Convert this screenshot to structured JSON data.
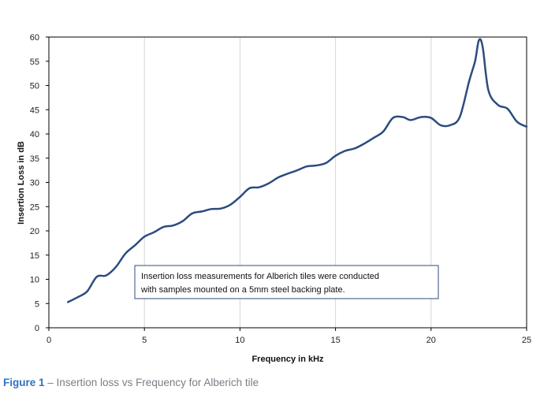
{
  "chart_data": {
    "type": "line",
    "xlabel": "Frequency in kHz",
    "ylabel": "Insertion Loss in dB",
    "xlim": [
      0,
      25
    ],
    "ylim": [
      0,
      60
    ],
    "xticks": [
      "0",
      "5",
      "10",
      "15",
      "20",
      "25"
    ],
    "yticks": [
      "0",
      "5",
      "10",
      "15",
      "20",
      "25",
      "30",
      "35",
      "40",
      "45",
      "50",
      "55",
      "60"
    ],
    "grid": "vertical",
    "line_color": "#2b4c7e",
    "annotation": {
      "line1": "Insertion loss measurements for Alberich tiles were conducted",
      "line2": "with samples mounted  on a 5mm  steel backing plate."
    },
    "series": [
      {
        "x": [
          1.0,
          1.5,
          2.0,
          2.5,
          3.0,
          3.5,
          4.0,
          4.5,
          5.0,
          5.5,
          6.0,
          6.5,
          7.0,
          7.5,
          8.0,
          8.5,
          9.0,
          9.5,
          10.0,
          10.5,
          11.0,
          11.5,
          12.0,
          12.5,
          13.0,
          13.5,
          14.0,
          14.5,
          15.0,
          15.5,
          16.0,
          16.5,
          17.0,
          17.5,
          18.0,
          18.5,
          18.8,
          19.0,
          19.5,
          20.0,
          20.5,
          21.0,
          21.5,
          22.0,
          22.3,
          22.5,
          22.7,
          23.0,
          23.5,
          24.0,
          24.5,
          25.0
        ],
        "values": [
          5.3,
          6.3,
          7.5,
          10.5,
          10.8,
          12.5,
          15.3,
          17.0,
          18.8,
          19.7,
          20.8,
          21.1,
          22.0,
          23.6,
          24.0,
          24.5,
          24.6,
          25.4,
          27.0,
          28.8,
          29.0,
          29.8,
          31.0,
          31.8,
          32.5,
          33.3,
          33.5,
          34.0,
          35.5,
          36.5,
          37.0,
          38.0,
          39.2,
          40.5,
          43.3,
          43.5,
          43.0,
          42.9,
          43.5,
          43.3,
          41.8,
          41.8,
          43.5,
          51.0,
          55.0,
          59.3,
          58.0,
          49.0,
          46.0,
          45.2,
          42.5,
          41.5
        ]
      }
    ]
  },
  "caption": {
    "figure_label": "Figure 1",
    "text": " – Insertion loss vs Frequency for Alberich tile"
  }
}
